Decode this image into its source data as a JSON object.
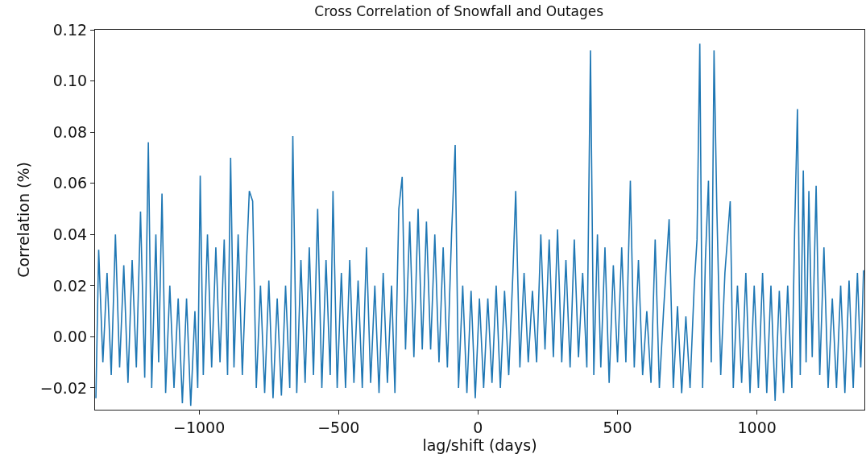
{
  "chart_data": {
    "type": "line",
    "title": "Cross Correlation of Snowfall and Outages",
    "xlabel": "lag/shift (days)",
    "ylabel": "Correlation (%)",
    "x": [
      -1370,
      -1360,
      -1345,
      -1330,
      -1315,
      -1300,
      -1285,
      -1270,
      -1255,
      -1240,
      -1225,
      -1210,
      -1195,
      -1182,
      -1170,
      -1155,
      -1145,
      -1133,
      -1120,
      -1105,
      -1090,
      -1075,
      -1060,
      -1045,
      -1030,
      -1015,
      -1005,
      -996,
      -985,
      -970,
      -955,
      -940,
      -925,
      -910,
      -898,
      -887,
      -875,
      -860,
      -845,
      -830,
      -820,
      -808,
      -795,
      -780,
      -765,
      -750,
      -735,
      -720,
      -705,
      -690,
      -675,
      -664,
      -650,
      -635,
      -620,
      -605,
      -590,
      -575,
      -560,
      -545,
      -530,
      -520,
      -505,
      -490,
      -475,
      -460,
      -445,
      -430,
      -415,
      -400,
      -385,
      -370,
      -355,
      -340,
      -325,
      -310,
      -298,
      -284,
      -272,
      -260,
      -245,
      -230,
      -215,
      -200,
      -185,
      -170,
      -155,
      -140,
      -125,
      -110,
      -95,
      -82,
      -70,
      -55,
      -40,
      -25,
      -10,
      5,
      20,
      35,
      50,
      65,
      80,
      95,
      110,
      125,
      135,
      150,
      165,
      180,
      195,
      210,
      225,
      240,
      255,
      270,
      285,
      300,
      315,
      330,
      345,
      360,
      375,
      390,
      403,
      415,
      428,
      440,
      455,
      470,
      485,
      500,
      515,
      530,
      546,
      560,
      575,
      590,
      605,
      620,
      635,
      650,
      665,
      685,
      700,
      715,
      730,
      745,
      760,
      775,
      785,
      795,
      805,
      815,
      826,
      836,
      846,
      856,
      870,
      885,
      904,
      915,
      930,
      945,
      960,
      975,
      990,
      1005,
      1020,
      1035,
      1050,
      1065,
      1080,
      1095,
      1110,
      1125,
      1135,
      1145,
      1155,
      1166,
      1176,
      1186,
      1198,
      1212,
      1225,
      1240,
      1255,
      1270,
      1285,
      1300,
      1315,
      1330,
      1345,
      1360,
      1372,
      1382
    ],
    "series": [
      {
        "color": "#1f77b4",
        "values": [
          -0.024,
          0.034,
          -0.01,
          0.025,
          -0.015,
          0.04,
          -0.012,
          0.028,
          -0.018,
          0.03,
          -0.012,
          0.049,
          -0.016,
          0.076,
          -0.02,
          0.04,
          -0.01,
          0.056,
          -0.022,
          0.02,
          -0.02,
          0.015,
          -0.026,
          0.015,
          -0.027,
          0.01,
          -0.02,
          0.063,
          -0.015,
          0.04,
          -0.012,
          0.035,
          -0.01,
          0.038,
          -0.015,
          0.07,
          -0.012,
          0.04,
          -0.015,
          0.03,
          0.057,
          0.053,
          -0.02,
          0.02,
          -0.022,
          0.022,
          -0.024,
          0.015,
          -0.023,
          0.02,
          -0.02,
          0.0785,
          -0.022,
          0.03,
          -0.018,
          0.035,
          -0.015,
          0.05,
          -0.02,
          0.03,
          -0.015,
          0.057,
          -0.02,
          0.025,
          -0.02,
          0.03,
          -0.018,
          0.022,
          -0.02,
          0.035,
          -0.018,
          0.02,
          -0.022,
          0.025,
          -0.018,
          0.02,
          -0.022,
          0.05,
          0.0625,
          -0.005,
          0.045,
          -0.008,
          0.05,
          -0.005,
          0.045,
          -0.005,
          0.04,
          -0.01,
          0.035,
          -0.012,
          0.04,
          0.075,
          -0.02,
          0.02,
          -0.022,
          0.018,
          -0.024,
          0.015,
          -0.02,
          0.015,
          -0.018,
          0.02,
          -0.02,
          0.018,
          -0.015,
          0.025,
          0.057,
          -0.012,
          0.025,
          -0.01,
          0.018,
          -0.01,
          0.04,
          -0.005,
          0.038,
          -0.008,
          0.042,
          -0.01,
          0.03,
          -0.012,
          0.038,
          -0.008,
          0.025,
          -0.012,
          0.112,
          -0.015,
          0.04,
          -0.012,
          0.035,
          -0.018,
          0.028,
          -0.01,
          0.035,
          -0.01,
          0.061,
          -0.012,
          0.03,
          -0.015,
          0.01,
          -0.018,
          0.038,
          -0.02,
          0.01,
          0.046,
          -0.02,
          0.012,
          -0.022,
          0.008,
          -0.02,
          0.02,
          0.038,
          0.1146,
          -0.02,
          0.03,
          0.061,
          -0.01,
          0.112,
          0.05,
          -0.015,
          0.025,
          0.053,
          -0.02,
          0.02,
          -0.018,
          0.025,
          -0.022,
          0.02,
          -0.02,
          0.025,
          -0.022,
          0.02,
          -0.025,
          0.018,
          -0.022,
          0.02,
          -0.02,
          0.042,
          0.089,
          -0.015,
          0.065,
          -0.01,
          0.057,
          -0.008,
          0.059,
          -0.015,
          0.035,
          -0.02,
          0.015,
          -0.02,
          0.02,
          -0.022,
          0.022,
          -0.02,
          0.025,
          -0.012,
          0.026
        ]
      }
    ],
    "xlim": [
      -1373,
      1385
    ],
    "xticks": [
      {
        "value": -1000,
        "label": "−1000"
      },
      {
        "value": -500,
        "label": "−500"
      },
      0,
      500,
      1000
    ],
    "ylim": [
      -0.0285,
      0.12
    ],
    "yticks": [
      {
        "value": -0.02,
        "label": "−0.02"
      },
      {
        "value": 0,
        "label": "0.00"
      },
      {
        "value": 0.02,
        "label": "0.02"
      },
      {
        "value": 0.04,
        "label": "0.04"
      },
      {
        "value": 0.06,
        "label": "0.06"
      },
      {
        "value": 0.08,
        "label": "0.08"
      },
      {
        "value": 0.1,
        "label": "0.10"
      },
      {
        "value": 0.12,
        "label": "0.12"
      }
    ],
    "marker": "none",
    "line_style": "solid"
  }
}
